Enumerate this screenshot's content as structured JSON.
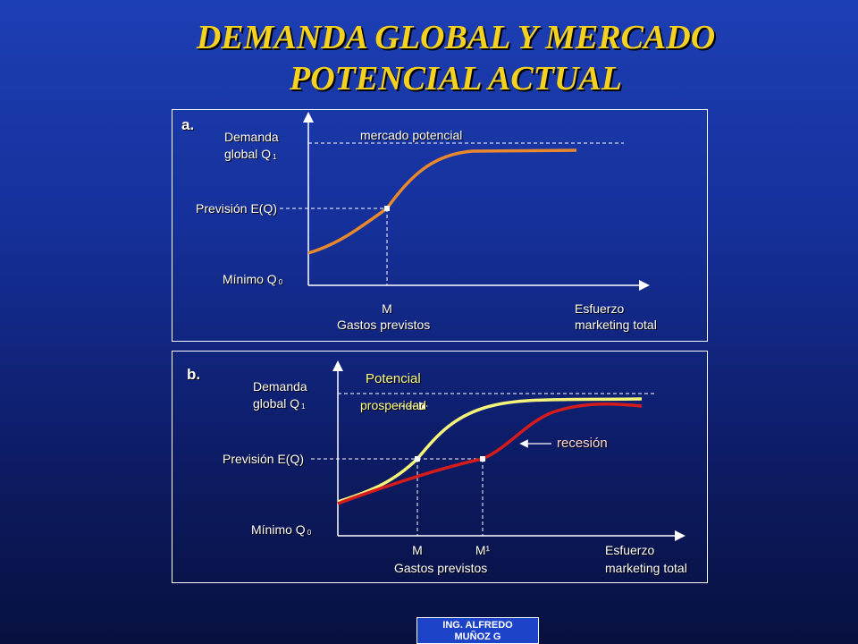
{
  "title": {
    "line1": "DEMANDA GLOBAL Y MERCADO",
    "line2": "POTENCIAL ACTUAL"
  },
  "panel_a": {
    "tag": "a.",
    "y_top_label_1": "Demanda",
    "y_top_label_2": "global Q",
    "y_top_sub": "1",
    "forecast_label": "Previsión E(Q)",
    "min_label": "Mínimo Q",
    "min_sub": "0",
    "potential_label": "mercado potencial",
    "m_label": "M",
    "spend_label": "Gastos previstos",
    "x_label_1": "Esfuerzo",
    "x_label_2": "marketing total"
  },
  "panel_b": {
    "tag": "b.",
    "y_top_label_1": "Demanda",
    "y_top_label_2": "global Q",
    "y_top_sub": "1",
    "forecast_label": "Previsión E(Q)",
    "min_label": "Mínimo Q",
    "min_sub": "0",
    "potential_label": "Potencial",
    "prosperity_label": "prosperidad",
    "recession_label": "recesión",
    "m_label": "M",
    "m1_label": "M¹",
    "spend_label": "Gastos previstos",
    "x_label_1": "Esfuerzo",
    "x_label_2": "marketing total"
  },
  "colors": {
    "background": "#1d3fb4",
    "title": "#f5d21f",
    "curve_a": "#e8892e",
    "curve_prosperity": "#f4f47a",
    "curve_recession": "#d41c1c",
    "axes": "#ffffff"
  },
  "footer": {
    "line1": "ING. ALFREDO",
    "line2": "MUÑOZ G"
  }
}
